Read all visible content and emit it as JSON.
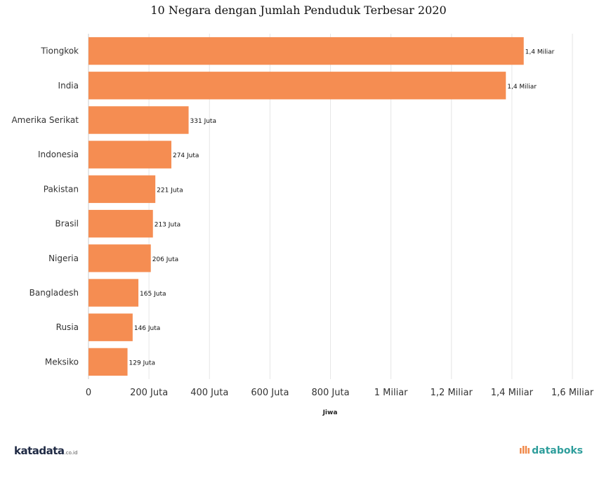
{
  "chart_data": {
    "type": "bar",
    "orientation": "horizontal",
    "title": "10 Negara dengan Jumlah Penduduk Terbesar 2020",
    "xlabel": "Jiwa",
    "ylabel": "",
    "xlim": [
      0,
      1600000000
    ],
    "grid": true,
    "bar_color": "#f58d52",
    "categories": [
      "Tiongkok",
      "India",
      "Amerika Serikat",
      "Indonesia",
      "Pakistan",
      "Brasil",
      "Nigeria",
      "Bangladesh",
      "Rusia",
      "Meksiko"
    ],
    "values": [
      1439000000,
      1380000000,
      331000000,
      274000000,
      221000000,
      213000000,
      206000000,
      165000000,
      146000000,
      129000000
    ],
    "data_labels": [
      "1,4 Miliar",
      "1,4 Miliar",
      "331 Juta",
      "274 Juta",
      "221 Juta",
      "213 Juta",
      "206 Juta",
      "165 Juta",
      "146 Juta",
      "129 Juta"
    ],
    "ticks": [
      {
        "value": 0,
        "label": "0"
      },
      {
        "value": 200000000,
        "label": "200 Juta"
      },
      {
        "value": 400000000,
        "label": "400 Juta"
      },
      {
        "value": 600000000,
        "label": "600 Juta"
      },
      {
        "value": 800000000,
        "label": "800 Juta"
      },
      {
        "value": 1000000000,
        "label": "1 Miliar"
      },
      {
        "value": 1200000000,
        "label": "1,2 Miliar"
      },
      {
        "value": 1400000000,
        "label": "1,4 Miliar"
      },
      {
        "value": 1600000000,
        "label": "1,6 Miliar"
      }
    ]
  },
  "footer": {
    "left_logo": "katadata",
    "left_logo_suffix": ".co.id",
    "right_logo": "databoks"
  }
}
